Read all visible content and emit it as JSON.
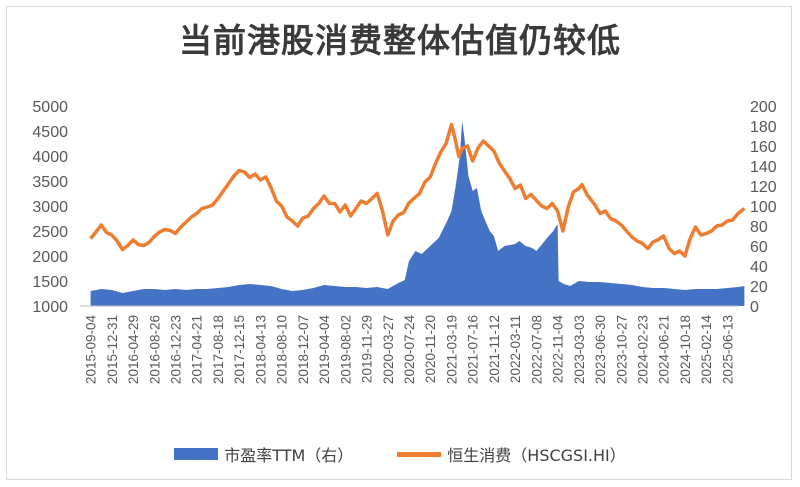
{
  "chart_data": {
    "type": "line",
    "title": "当前港股消费整体估值仍较低",
    "x_tick_labels": [
      "2015-09-04",
      "2015-12-31",
      "2016-04-29",
      "2016-08-26",
      "2016-12-23",
      "2017-04-21",
      "2017-08-18",
      "2017-12-15",
      "2018-04-13",
      "2018-08-10",
      "2018-12-07",
      "2019-04-04",
      "2019-08-02",
      "2019-11-29",
      "2020-03-27",
      "2020-07-24",
      "2020-11-20",
      "2021-03-19",
      "2021-07-16",
      "2021-11-12",
      "2022-03-11",
      "2022-07-08",
      "2022-11-04",
      "2023-03-03",
      "2023-06-30",
      "2023-10-27",
      "2024-02-23",
      "2024-06-21",
      "2024-10-18",
      "2025-02-14",
      "2025-06-13"
    ],
    "y_left_ticks": [
      "5000",
      "4500",
      "4000",
      "3500",
      "3000",
      "2500",
      "2000",
      "1500",
      "1000"
    ],
    "y_right_ticks": [
      "200",
      "180",
      "160",
      "140",
      "120",
      "100",
      "80",
      "60",
      "40",
      "20",
      "0"
    ],
    "y_left_range": [
      1000,
      5000
    ],
    "y_right_range": [
      0,
      200
    ],
    "legend_position": "bottom",
    "series": [
      {
        "name": "市盈率TTM（右）",
        "kind": "area",
        "axis": "right",
        "color": "#4472c4",
        "points": [
          [
            0,
            15
          ],
          [
            0.5,
            17
          ],
          [
            1,
            16
          ],
          [
            1.5,
            13
          ],
          [
            2,
            15
          ],
          [
            2.5,
            17
          ],
          [
            3,
            17
          ],
          [
            3.5,
            16
          ],
          [
            4,
            17
          ],
          [
            4.5,
            16
          ],
          [
            5,
            17
          ],
          [
            5.5,
            17
          ],
          [
            6,
            18
          ],
          [
            6.5,
            19
          ],
          [
            7,
            21
          ],
          [
            7.5,
            22
          ],
          [
            8,
            21
          ],
          [
            8.5,
            20
          ],
          [
            9,
            17
          ],
          [
            9.5,
            15
          ],
          [
            10,
            16
          ],
          [
            10.5,
            18
          ],
          [
            11,
            21
          ],
          [
            11.5,
            20
          ],
          [
            12,
            19
          ],
          [
            12.5,
            19
          ],
          [
            13,
            18
          ],
          [
            13.5,
            19
          ],
          [
            14,
            17
          ],
          [
            14.5,
            23
          ],
          [
            14.8,
            26
          ],
          [
            15,
            45
          ],
          [
            15.3,
            55
          ],
          [
            15.6,
            52
          ],
          [
            16,
            60
          ],
          [
            16.4,
            68
          ],
          [
            16.8,
            85
          ],
          [
            17,
            95
          ],
          [
            17.2,
            120
          ],
          [
            17.4,
            150
          ],
          [
            17.5,
            185
          ],
          [
            17.6,
            170
          ],
          [
            17.8,
            130
          ],
          [
            18,
            115
          ],
          [
            18.2,
            118
          ],
          [
            18.4,
            95
          ],
          [
            18.6,
            85
          ],
          [
            18.8,
            75
          ],
          [
            19,
            70
          ],
          [
            19.2,
            55
          ],
          [
            19.5,
            60
          ],
          [
            20,
            62
          ],
          [
            20.2,
            65
          ],
          [
            20.5,
            60
          ],
          [
            20.8,
            58
          ],
          [
            21,
            55
          ],
          [
            21.2,
            60
          ],
          [
            21.5,
            68
          ],
          [
            21.8,
            75
          ],
          [
            22,
            82
          ],
          [
            22.05,
            25
          ],
          [
            22.3,
            22
          ],
          [
            22.6,
            20
          ],
          [
            23,
            25
          ],
          [
            23.5,
            24
          ],
          [
            24,
            24
          ],
          [
            24.5,
            23
          ],
          [
            25,
            22
          ],
          [
            25.5,
            21
          ],
          [
            26,
            19
          ],
          [
            26.5,
            18
          ],
          [
            27,
            18
          ],
          [
            27.5,
            17
          ],
          [
            28,
            16
          ],
          [
            28.5,
            17
          ],
          [
            29,
            17
          ],
          [
            29.5,
            17
          ],
          [
            30,
            18
          ],
          [
            30.5,
            19
          ],
          [
            30.8,
            20
          ]
        ]
      },
      {
        "name": "恒生消费（HSCGSI.HI）",
        "kind": "line",
        "axis": "left",
        "color": "#ed7d31",
        "points": [
          [
            0,
            2350
          ],
          [
            0.25,
            2480
          ],
          [
            0.5,
            2620
          ],
          [
            0.75,
            2470
          ],
          [
            1,
            2420
          ],
          [
            1.25,
            2300
          ],
          [
            1.5,
            2130
          ],
          [
            1.75,
            2210
          ],
          [
            2,
            2320
          ],
          [
            2.25,
            2230
          ],
          [
            2.5,
            2210
          ],
          [
            2.75,
            2270
          ],
          [
            3,
            2390
          ],
          [
            3.25,
            2480
          ],
          [
            3.5,
            2530
          ],
          [
            3.75,
            2510
          ],
          [
            4,
            2450
          ],
          [
            4.25,
            2580
          ],
          [
            4.5,
            2680
          ],
          [
            4.75,
            2780
          ],
          [
            5,
            2850
          ],
          [
            5.25,
            2950
          ],
          [
            5.5,
            2980
          ],
          [
            5.75,
            3020
          ],
          [
            6,
            3150
          ],
          [
            6.25,
            3300
          ],
          [
            6.5,
            3450
          ],
          [
            6.75,
            3600
          ],
          [
            7,
            3710
          ],
          [
            7.25,
            3680
          ],
          [
            7.5,
            3570
          ],
          [
            7.75,
            3640
          ],
          [
            8,
            3520
          ],
          [
            8.25,
            3580
          ],
          [
            8.5,
            3370
          ],
          [
            8.75,
            3100
          ],
          [
            9,
            3000
          ],
          [
            9.25,
            2780
          ],
          [
            9.5,
            2700
          ],
          [
            9.75,
            2600
          ],
          [
            10,
            2760
          ],
          [
            10.25,
            2800
          ],
          [
            10.5,
            2950
          ],
          [
            10.75,
            3050
          ],
          [
            11,
            3200
          ],
          [
            11.25,
            3050
          ],
          [
            11.5,
            3050
          ],
          [
            11.75,
            2880
          ],
          [
            12,
            3020
          ],
          [
            12.25,
            2800
          ],
          [
            12.5,
            2950
          ],
          [
            12.75,
            3100
          ],
          [
            13,
            3050
          ],
          [
            13.25,
            3150
          ],
          [
            13.5,
            3250
          ],
          [
            13.75,
            2900
          ],
          [
            14,
            2420
          ],
          [
            14.25,
            2700
          ],
          [
            14.5,
            2820
          ],
          [
            14.75,
            2870
          ],
          [
            15,
            3060
          ],
          [
            15.25,
            3160
          ],
          [
            15.5,
            3250
          ],
          [
            15.75,
            3480
          ],
          [
            16,
            3580
          ],
          [
            16.25,
            3850
          ],
          [
            16.5,
            4080
          ],
          [
            16.75,
            4250
          ],
          [
            17,
            4630
          ],
          [
            17.15,
            4380
          ],
          [
            17.35,
            3990
          ],
          [
            17.5,
            4150
          ],
          [
            17.75,
            4200
          ],
          [
            18,
            3900
          ],
          [
            18.25,
            4160
          ],
          [
            18.5,
            4300
          ],
          [
            18.75,
            4200
          ],
          [
            19,
            4100
          ],
          [
            19.25,
            3860
          ],
          [
            19.5,
            3700
          ],
          [
            19.75,
            3550
          ],
          [
            20,
            3350
          ],
          [
            20.25,
            3420
          ],
          [
            20.5,
            3150
          ],
          [
            20.75,
            3230
          ],
          [
            21,
            3110
          ],
          [
            21.25,
            3000
          ],
          [
            21.5,
            2950
          ],
          [
            21.75,
            3050
          ],
          [
            22,
            2900
          ],
          [
            22.25,
            2500
          ],
          [
            22.5,
            2980
          ],
          [
            22.75,
            3280
          ],
          [
            23,
            3350
          ],
          [
            23.15,
            3430
          ],
          [
            23.4,
            3220
          ],
          [
            23.75,
            3030
          ],
          [
            24,
            2850
          ],
          [
            24.25,
            2900
          ],
          [
            24.5,
            2750
          ],
          [
            24.75,
            2700
          ],
          [
            25,
            2620
          ],
          [
            25.25,
            2500
          ],
          [
            25.5,
            2380
          ],
          [
            25.75,
            2300
          ],
          [
            26,
            2250
          ],
          [
            26.25,
            2150
          ],
          [
            26.5,
            2280
          ],
          [
            26.75,
            2330
          ],
          [
            27,
            2400
          ],
          [
            27.25,
            2150
          ],
          [
            27.5,
            2050
          ],
          [
            27.75,
            2100
          ],
          [
            28,
            2000
          ],
          [
            28.25,
            2350
          ],
          [
            28.5,
            2580
          ],
          [
            28.75,
            2420
          ],
          [
            29,
            2450
          ],
          [
            29.25,
            2500
          ],
          [
            29.5,
            2600
          ],
          [
            29.75,
            2620
          ],
          [
            30,
            2700
          ],
          [
            30.25,
            2720
          ],
          [
            30.5,
            2850
          ],
          [
            30.8,
            2950
          ]
        ]
      }
    ]
  }
}
